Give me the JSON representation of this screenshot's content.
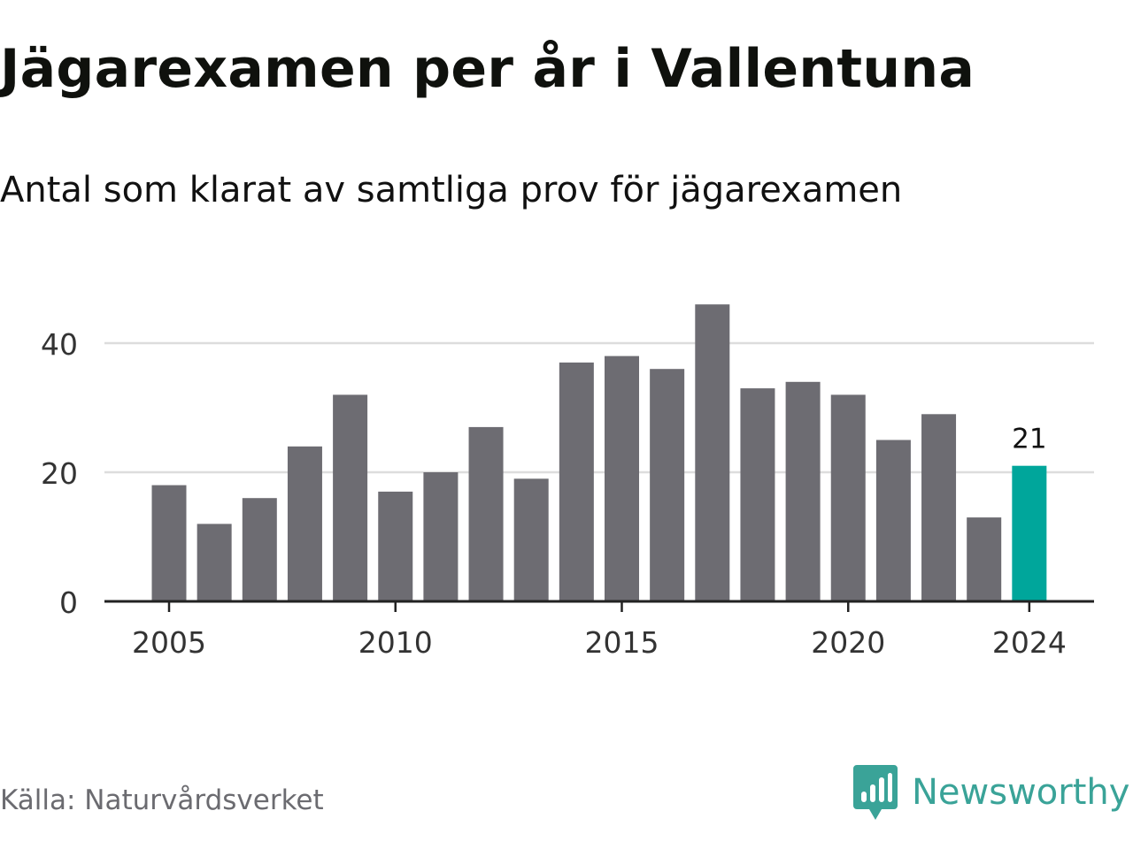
{
  "title": "Jägarexamen per år i Vallentuna",
  "subtitle": "Antal som klarat av samtliga prov för jägarexamen",
  "source": "Källa: Naturvårdsverket",
  "brand": {
    "name": "Newsworthy",
    "icon": "newsworthy-logo-icon",
    "color": "#3aa398"
  },
  "colors": {
    "bar": "#6d6c72",
    "highlight": "#00a69b",
    "grid": "#dddddd",
    "axis": "#222222"
  },
  "chart_data": {
    "type": "bar",
    "categories": [
      "2005",
      "2006",
      "2007",
      "2008",
      "2009",
      "2010",
      "2011",
      "2012",
      "2013",
      "2014",
      "2015",
      "2016",
      "2017",
      "2018",
      "2019",
      "2020",
      "2021",
      "2022",
      "2023",
      "2024"
    ],
    "values": [
      18,
      12,
      16,
      24,
      32,
      17,
      20,
      27,
      19,
      37,
      38,
      36,
      46,
      33,
      34,
      32,
      25,
      29,
      13,
      21
    ],
    "highlight_index": 19,
    "data_labels": [
      {
        "index": 19,
        "text": "21"
      }
    ],
    "x_tick_labels": [
      "2005",
      "2010",
      "2015",
      "2020",
      "2024"
    ],
    "y_ticks": [
      0,
      20,
      40
    ],
    "ylim": [
      0,
      46
    ],
    "grid": true
  }
}
